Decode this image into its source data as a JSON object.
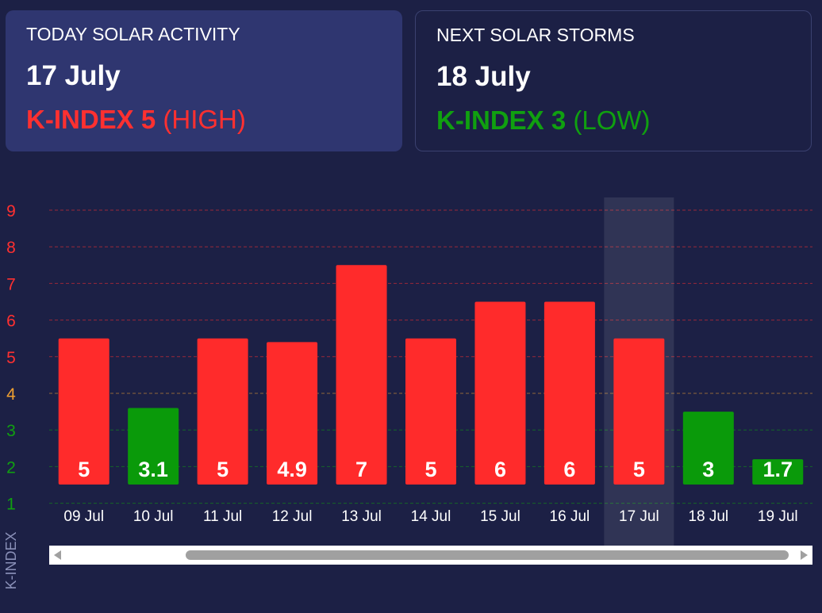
{
  "today": {
    "title": "TODAY SOLAR ACTIVITY",
    "date": "17 July",
    "kindex_strong": "K-INDEX 5",
    "kindex_level": "(HIGH)",
    "color": "#ff3030"
  },
  "next": {
    "title": "NEXT SOLAR STORMS",
    "date": "18 July",
    "kindex_strong": "K-INDEX 3",
    "kindex_level": "(LOW)",
    "color": "#10a010"
  },
  "chart_data": {
    "type": "bar",
    "categories": [
      "09 Jul",
      "10 Jul",
      "11 Jul",
      "12 Jul",
      "13 Jul",
      "14 Jul",
      "15 Jul",
      "16 Jul",
      "17 Jul",
      "18 Jul",
      "19 Jul"
    ],
    "series": [
      {
        "values": [
          5,
          3.1,
          5,
          4.9,
          7,
          5,
          6,
          6,
          5,
          3,
          1.7
        ],
        "labels": [
          "5",
          "3.1",
          "5",
          "4.9",
          "7",
          "5",
          "6",
          "6",
          "5",
          "3",
          "1.7"
        ]
      }
    ],
    "bar_colors": [
      "#ff2b2b",
      "#0a9a0a",
      "#ff2b2b",
      "#ff2b2b",
      "#ff2b2b",
      "#ff2b2b",
      "#ff2b2b",
      "#ff2b2b",
      "#ff2b2b",
      "#0a9a0a",
      "#0a9a0a"
    ],
    "ylabel": "K-INDEX",
    "yticks": [
      "1",
      "2",
      "3",
      "4",
      "5",
      "6",
      "7",
      "8",
      "9"
    ],
    "ytick_colors": [
      "#10a010",
      "#10a010",
      "#10a010",
      "#f0a030",
      "#ff3030",
      "#ff3030",
      "#ff3030",
      "#ff3030",
      "#ff3030"
    ],
    "ylim": [
      1,
      9
    ],
    "highlighted_category": "17 Jul",
    "grid": true,
    "scrollbar": true
  }
}
